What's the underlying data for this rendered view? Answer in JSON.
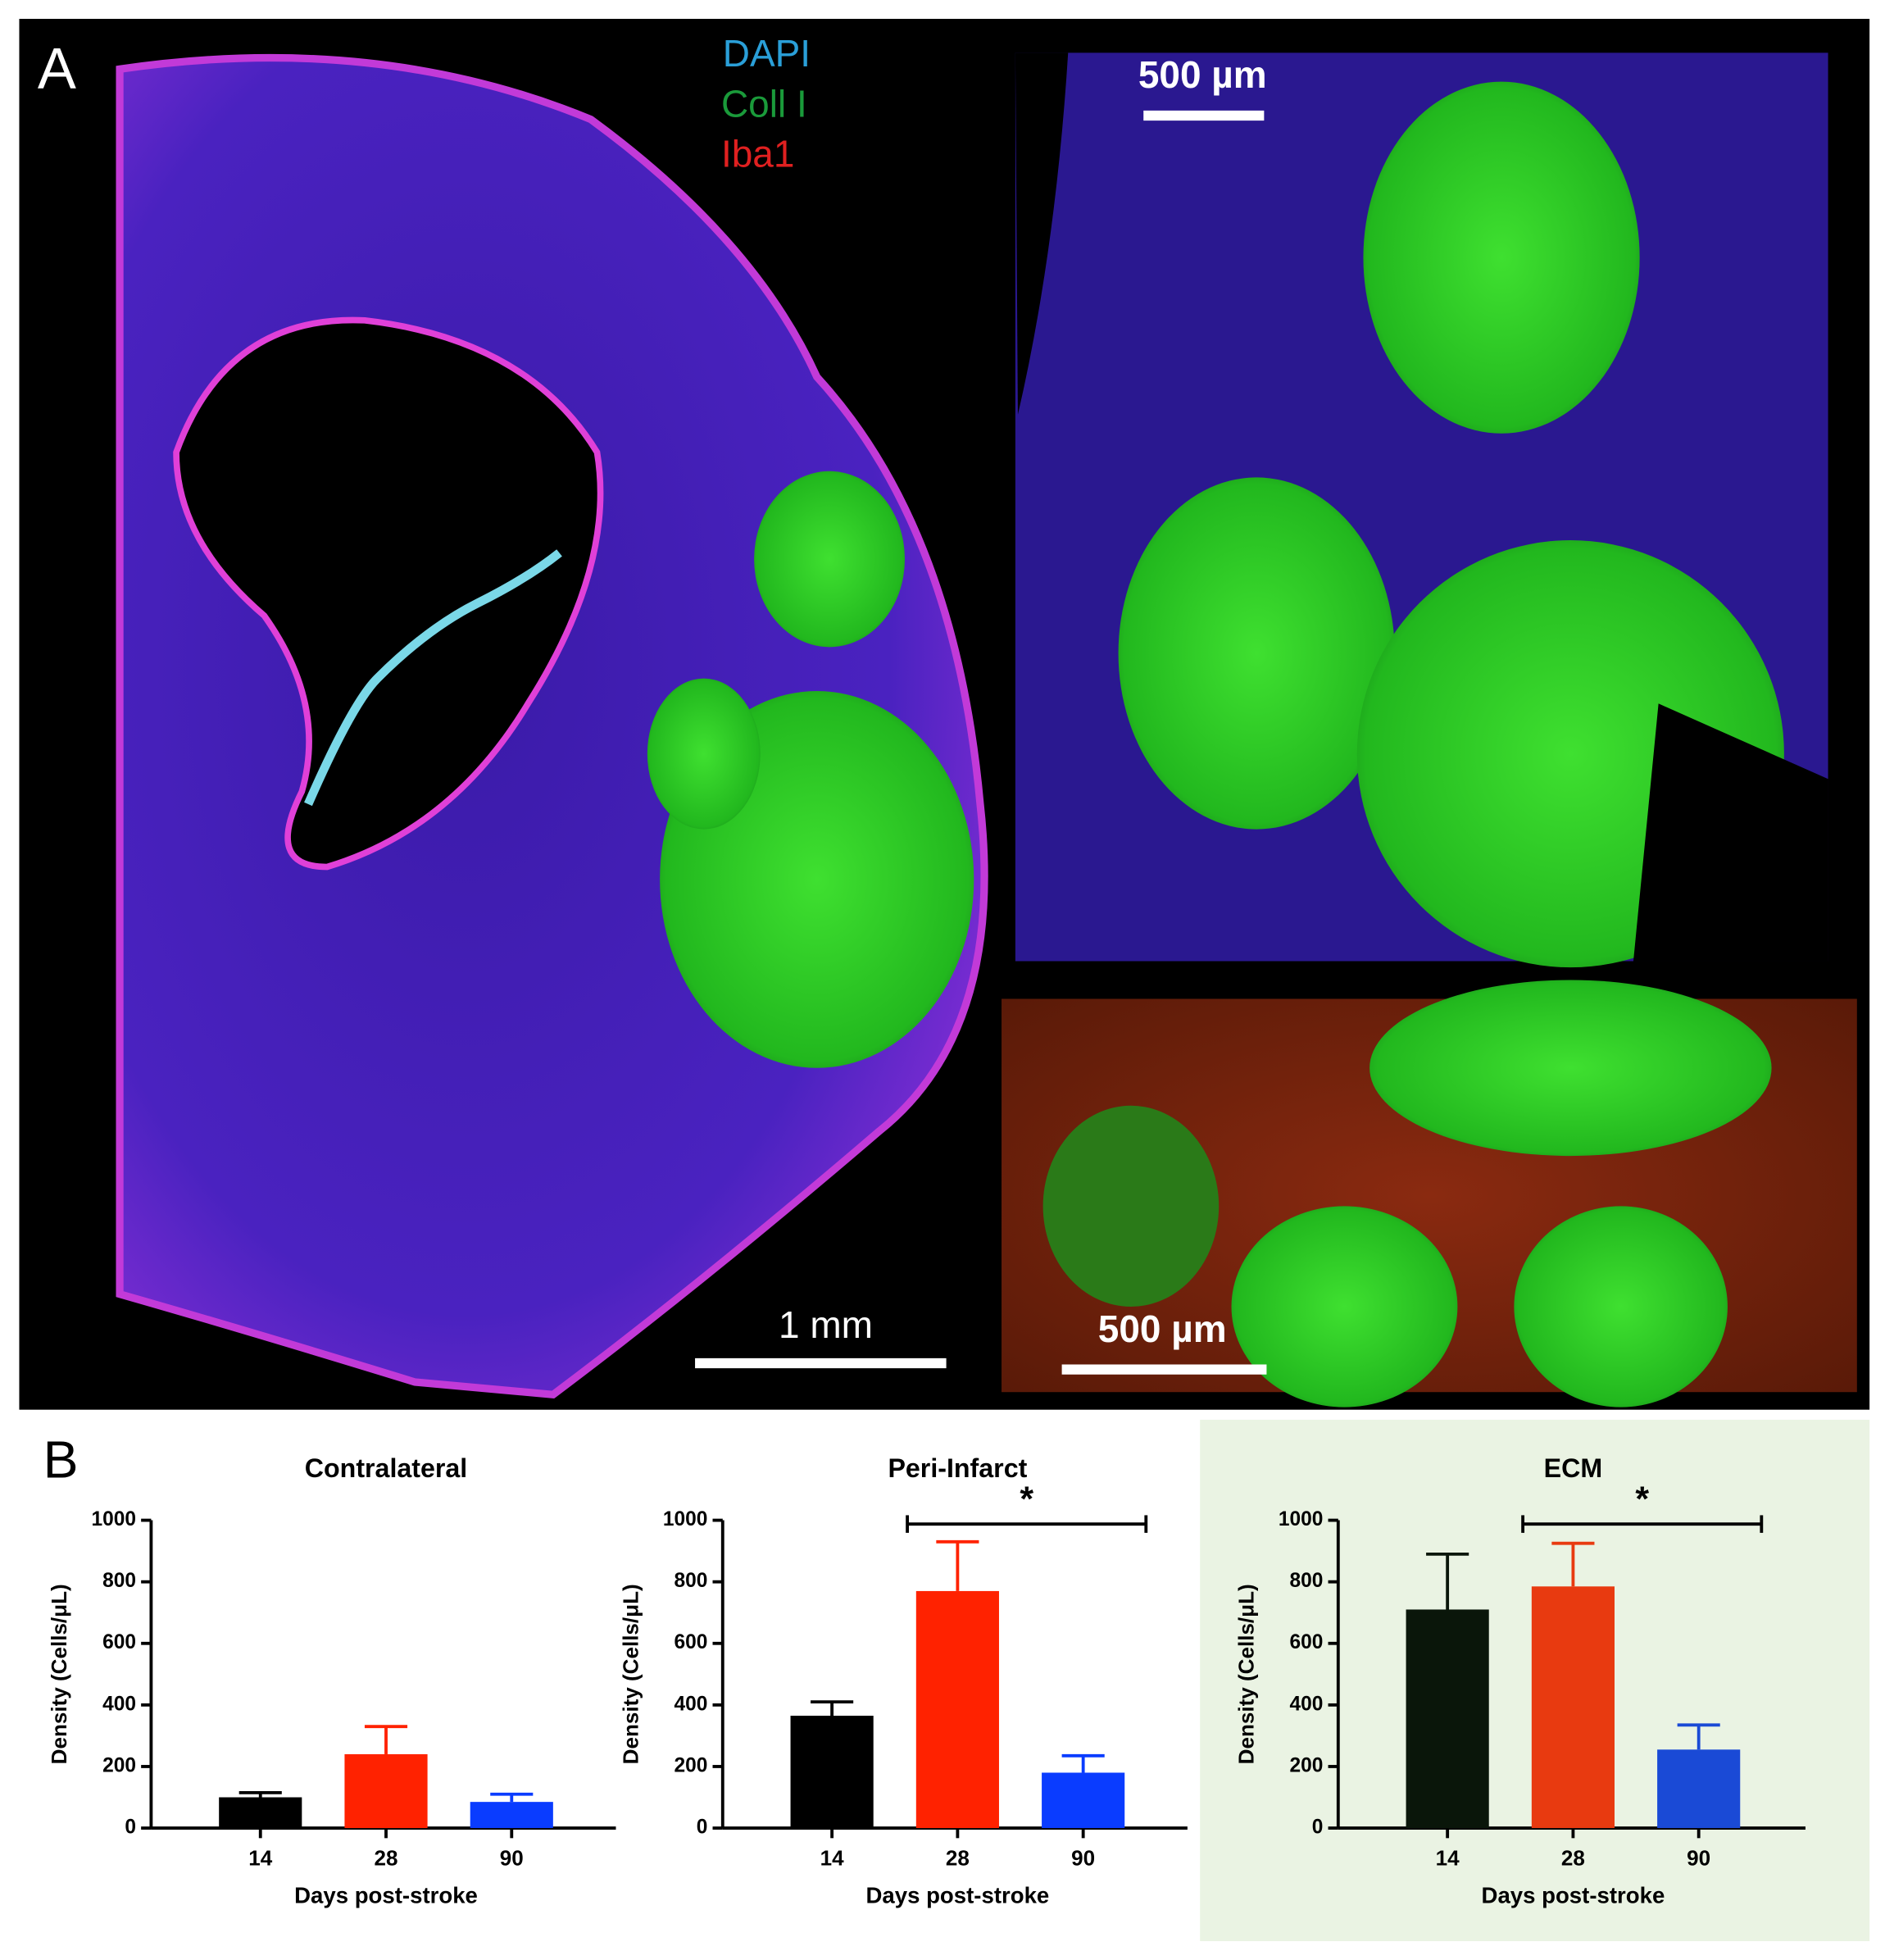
{
  "panel_a": {
    "label": "A",
    "legend": [
      "DAPI",
      "Coll I",
      "Iba1"
    ],
    "scale_bars": [
      "500 µm",
      "1 mm",
      "500 µm"
    ]
  },
  "panel_b": {
    "label": "B"
  },
  "chart_data": [
    {
      "type": "bar",
      "title": "Contralateral",
      "xlabel": "Days post-stroke",
      "ylabel": "Density (Cells/μL)",
      "categories": [
        "14",
        "28",
        "90"
      ],
      "values": [
        100,
        240,
        85
      ],
      "errors": [
        15,
        90,
        25
      ],
      "colors": [
        "#000000",
        "#ff2200",
        "#0a3cff"
      ],
      "ylim": [
        0,
        1000
      ],
      "yticks": [
        0,
        200,
        400,
        600,
        800,
        1000
      ]
    },
    {
      "type": "bar",
      "title": "Peri-Infarct",
      "xlabel": "Days post-stroke",
      "ylabel": "Density (Cells/μL)",
      "categories": [
        "14",
        "28",
        "90"
      ],
      "values": [
        365,
        770,
        180
      ],
      "errors": [
        45,
        160,
        55
      ],
      "colors": [
        "#000000",
        "#ff2200",
        "#0a3cff"
      ],
      "ylim": [
        0,
        1000
      ],
      "yticks": [
        0,
        200,
        400,
        600,
        800,
        1000
      ],
      "annotation": "*"
    },
    {
      "type": "bar",
      "title": "ECM",
      "xlabel": "Days post-stroke",
      "ylabel": "Density (Cells/μL)",
      "categories": [
        "14",
        "28",
        "90"
      ],
      "values": [
        710,
        785,
        255
      ],
      "errors": [
        180,
        140,
        80
      ],
      "colors": [
        "#0a160a",
        "#e83a10",
        "#1a4ad6"
      ],
      "ylim": [
        0,
        1000
      ],
      "yticks": [
        0,
        200,
        400,
        600,
        800,
        1000
      ],
      "annotation": "*",
      "background": "#eaf3e3"
    }
  ]
}
